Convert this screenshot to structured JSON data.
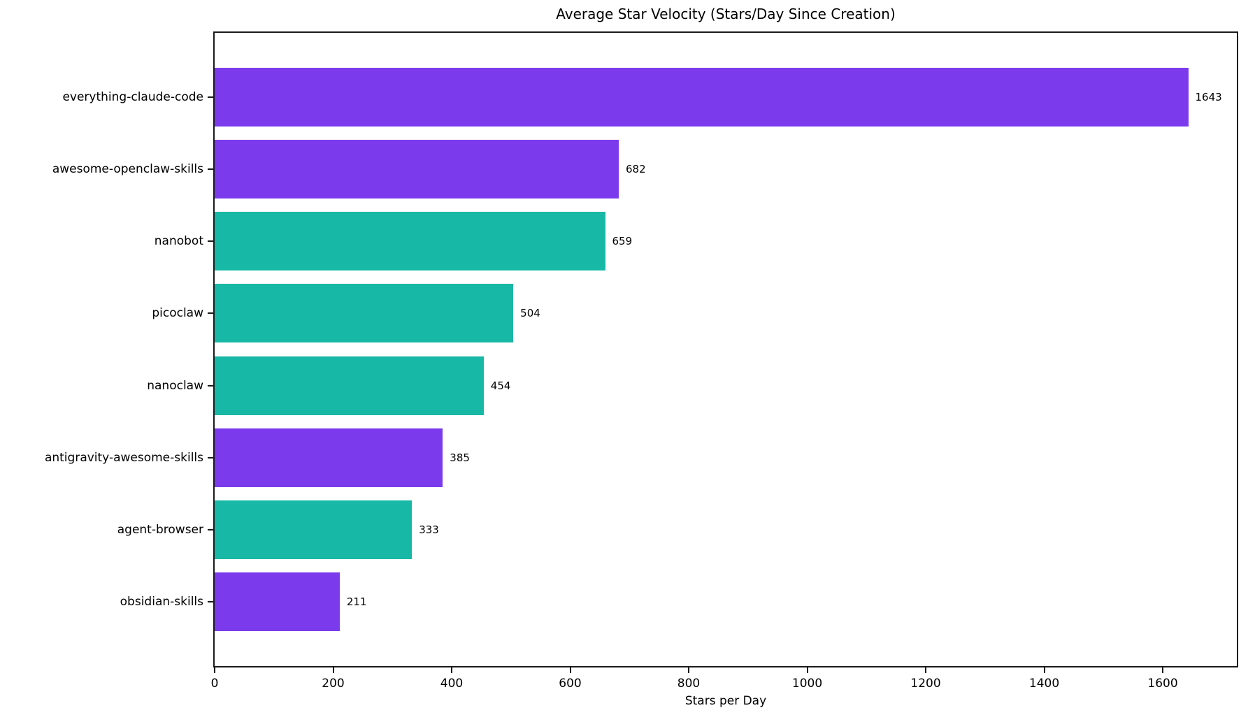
{
  "figure": {
    "background": "#ffffff",
    "axis_color": "#1a1a1a",
    "text_color": "#000000"
  },
  "chart_data": {
    "type": "bar",
    "orientation": "horizontal",
    "title": "Average Star Velocity (Stars/Day Since Creation)",
    "xlabel": "Stars per Day",
    "ylabel": "",
    "categories": [
      "everything-claude-code",
      "awesome-openclaw-skills",
      "nanobot",
      "picoclaw",
      "nanoclaw",
      "antigravity-awesome-skills",
      "agent-browser",
      "obsidian-skills"
    ],
    "values": [
      1643,
      682,
      659,
      504,
      454,
      385,
      333,
      211
    ],
    "value_labels": [
      "1643",
      "682",
      "659",
      "504",
      "454",
      "385",
      "333",
      "211"
    ],
    "bar_colors": [
      "#7C3AED",
      "#7C3AED",
      "#17B8A6",
      "#17B8A6",
      "#17B8A6",
      "#7C3AED",
      "#17B8A6",
      "#7C3AED"
    ],
    "color_legend": {
      "purple": "#7C3AED",
      "teal": "#17B8A6"
    },
    "xlim": [
      0,
      1725
    ],
    "xticks": [
      0,
      200,
      400,
      600,
      800,
      1000,
      1200,
      1400,
      1600
    ],
    "grid": false,
    "legend": null,
    "bar_relative_height": 0.8
  }
}
